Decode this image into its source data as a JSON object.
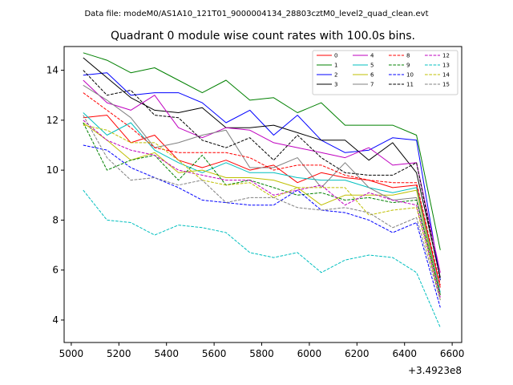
{
  "header": {
    "datafile": "Data file: modeM0/AS1A10_121T01_9000004134_28803cztM0_level2_quad_clean.evt"
  },
  "chart_data": {
    "type": "line",
    "title": "Quadrant 0 module wise count rates with 100.0s bins.",
    "xlabel": "",
    "ylabel": "",
    "x_offset_label": "+3.4923e8",
    "xlim": [
      4970,
      6640
    ],
    "ylim": [
      3.1,
      14.95
    ],
    "xticks": [
      5000,
      5200,
      5400,
      5600,
      5800,
      6000,
      6200,
      6400,
      6600
    ],
    "yticks": [
      4,
      6,
      8,
      10,
      12,
      14
    ],
    "x": [
      5050,
      5150,
      5250,
      5350,
      5450,
      5550,
      5650,
      5750,
      5850,
      5950,
      6050,
      6150,
      6250,
      6350,
      6450,
      6550
    ],
    "legend_position": "top-right",
    "series": [
      {
        "name": "0",
        "color": "#ff0000",
        "dash": "solid",
        "values": [
          12.1,
          12.2,
          11.1,
          11.4,
          10.4,
          10.1,
          10.4,
          10.0,
          10.2,
          9.5,
          9.9,
          9.7,
          9.6,
          9.3,
          9.4,
          5.3
        ]
      },
      {
        "name": "1",
        "color": "#008000",
        "dash": "solid",
        "values": [
          14.7,
          14.4,
          13.9,
          14.1,
          13.6,
          13.1,
          13.6,
          12.8,
          12.9,
          12.3,
          12.7,
          11.8,
          11.8,
          11.8,
          11.4,
          6.8
        ]
      },
      {
        "name": "2",
        "color": "#0000ff",
        "dash": "solid",
        "values": [
          13.8,
          13.9,
          13.0,
          13.1,
          13.1,
          12.7,
          11.9,
          12.4,
          11.4,
          12.2,
          11.2,
          10.7,
          10.8,
          11.3,
          11.2,
          5.6
        ]
      },
      {
        "name": "3",
        "color": "#000000",
        "dash": "solid",
        "values": [
          14.5,
          13.7,
          12.9,
          12.4,
          12.3,
          12.5,
          11.7,
          11.7,
          11.8,
          11.5,
          11.2,
          11.2,
          10.4,
          11.1,
          9.9,
          5.7
        ]
      },
      {
        "name": "4",
        "color": "#bf00bf",
        "dash": "solid",
        "values": [
          13.6,
          12.7,
          12.4,
          13.0,
          11.7,
          11.3,
          11.7,
          11.6,
          11.1,
          10.9,
          10.7,
          10.5,
          10.9,
          10.2,
          10.3,
          5.9
        ]
      },
      {
        "name": "5",
        "color": "#00bfbf",
        "dash": "solid",
        "values": [
          12.3,
          11.4,
          11.9,
          10.8,
          10.3,
          9.9,
          10.3,
          9.9,
          9.9,
          9.7,
          9.6,
          9.6,
          9.3,
          9.1,
          9.3,
          5.1
        ]
      },
      {
        "name": "6",
        "color": "#bfbf00",
        "dash": "solid",
        "values": [
          11.9,
          11.2,
          10.4,
          10.7,
          9.9,
          10.0,
          9.7,
          9.7,
          9.6,
          9.3,
          8.6,
          9.0,
          9.0,
          9.0,
          9.2,
          5.0
        ]
      },
      {
        "name": "7",
        "color": "#808080",
        "dash": "solid",
        "values": [
          13.4,
          12.8,
          12.1,
          10.9,
          11.1,
          11.4,
          11.6,
          10.1,
          10.1,
          10.5,
          9.3,
          10.3,
          9.3,
          8.8,
          8.9,
          5.0
        ]
      },
      {
        "name": "8",
        "color": "#ff0000",
        "dash": "dashed",
        "values": [
          13.1,
          12.4,
          11.7,
          10.9,
          10.7,
          10.7,
          10.7,
          10.5,
          10.0,
          10.2,
          10.2,
          9.8,
          9.6,
          9.5,
          9.5,
          5.4
        ]
      },
      {
        "name": "9",
        "color": "#008000",
        "dash": "dashed",
        "values": [
          11.9,
          10.0,
          10.4,
          10.6,
          9.6,
          10.6,
          9.4,
          9.6,
          9.3,
          9.0,
          9.1,
          8.8,
          8.9,
          8.7,
          8.8,
          5.0
        ]
      },
      {
        "name": "10",
        "color": "#0000ff",
        "dash": "dashed",
        "values": [
          11.0,
          10.8,
          10.1,
          9.7,
          9.3,
          8.8,
          8.7,
          8.6,
          8.6,
          9.2,
          8.4,
          8.3,
          8.0,
          7.5,
          7.9,
          4.5
        ]
      },
      {
        "name": "11",
        "color": "#000000",
        "dash": "dashed",
        "values": [
          14.0,
          13.0,
          13.2,
          12.2,
          12.1,
          11.2,
          10.9,
          11.3,
          10.4,
          11.4,
          10.5,
          9.9,
          9.8,
          9.8,
          10.3,
          5.6
        ]
      },
      {
        "name": "12",
        "color": "#bf00bf",
        "dash": "dashed",
        "values": [
          12.0,
          11.2,
          10.8,
          10.6,
          10.0,
          9.8,
          9.6,
          9.6,
          9.0,
          9.2,
          9.4,
          8.6,
          9.1,
          8.8,
          8.6,
          4.9
        ]
      },
      {
        "name": "13",
        "color": "#00bfbf",
        "dash": "dashed",
        "values": [
          9.2,
          8.0,
          7.9,
          7.4,
          7.8,
          7.7,
          7.5,
          6.7,
          6.5,
          6.7,
          5.9,
          6.4,
          6.6,
          6.5,
          5.9,
          3.7
        ]
      },
      {
        "name": "14",
        "color": "#bfbf00",
        "dash": "dashed",
        "values": [
          11.8,
          11.6,
          11.1,
          11.1,
          10.4,
          9.6,
          9.4,
          9.5,
          8.9,
          9.3,
          9.3,
          9.3,
          8.2,
          8.4,
          8.5,
          4.8
        ]
      },
      {
        "name": "15",
        "color": "#808080",
        "dash": "dashed",
        "values": [
          12.2,
          10.5,
          9.6,
          9.7,
          9.4,
          9.6,
          8.7,
          8.9,
          8.9,
          8.5,
          8.4,
          8.5,
          8.3,
          7.7,
          8.1,
          4.8
        ]
      }
    ]
  }
}
